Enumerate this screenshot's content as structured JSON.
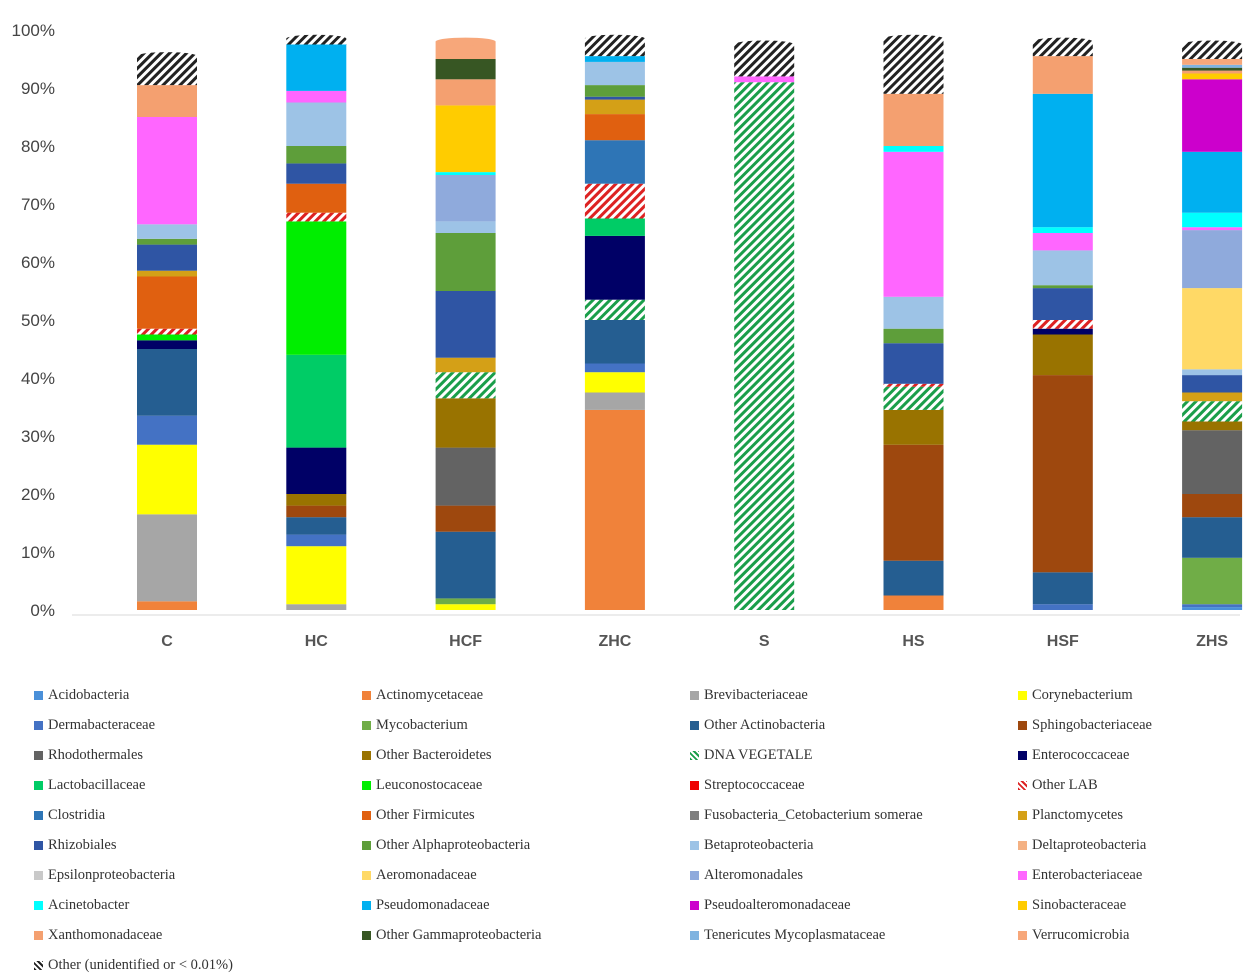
{
  "chart_data": {
    "type": "bar",
    "stacked": true,
    "categories": [
      "C",
      "HC",
      "HCF",
      "ZHC",
      "S",
      "HS",
      "HSF",
      "ZHS"
    ],
    "y_ticks": [
      "0%",
      "10%",
      "20%",
      "30%",
      "40%",
      "50%",
      "60%",
      "70%",
      "80%",
      "90%",
      "100%"
    ],
    "ylim": [
      0,
      100
    ],
    "grid": false,
    "legend_position": "bottom",
    "series": [
      {
        "name": "Acidobacteria",
        "color": "#4a90d9",
        "pattern": "solid",
        "values": [
          0,
          0,
          0,
          0,
          0,
          0,
          0,
          0.5
        ]
      },
      {
        "name": "Actinomycetaceae",
        "color": "#f0823a",
        "pattern": "solid",
        "values": [
          1.5,
          0,
          0,
          34.5,
          0,
          2.5,
          0,
          0
        ]
      },
      {
        "name": "Brevibacteriaceae",
        "color": "#a6a6a6",
        "pattern": "solid",
        "values": [
          15,
          1,
          0,
          3,
          0,
          0,
          0,
          0
        ]
      },
      {
        "name": "Corynebacterium",
        "color": "#ffff00",
        "pattern": "solid",
        "values": [
          12,
          10,
          1,
          3.5,
          0,
          0,
          0,
          0
        ]
      },
      {
        "name": "Dermabacteraceae",
        "color": "#4472c4",
        "pattern": "solid",
        "values": [
          5,
          2,
          0,
          1.5,
          0,
          0,
          1,
          0.5
        ]
      },
      {
        "name": "Mycobacterium",
        "color": "#70ad47",
        "pattern": "solid",
        "values": [
          0,
          0,
          1,
          0,
          0,
          0,
          0,
          8
        ]
      },
      {
        "name": "Other Actinobacteria",
        "color": "#255e91",
        "pattern": "solid",
        "values": [
          11.5,
          3,
          11.5,
          7.5,
          0,
          6,
          5.5,
          7
        ]
      },
      {
        "name": "Sphingobacteriaceae",
        "color": "#9e480e",
        "pattern": "solid",
        "values": [
          0,
          2,
          4.5,
          0,
          0,
          20,
          34,
          4
        ]
      },
      {
        "name": "Rhodothermales",
        "color": "#636363",
        "pattern": "solid",
        "values": [
          0,
          0,
          10,
          0,
          0,
          0,
          0,
          11
        ]
      },
      {
        "name": "Other Bacteroidetes",
        "color": "#997300",
        "pattern": "solid",
        "values": [
          0,
          2,
          8.5,
          0,
          0,
          6,
          7,
          1.5
        ]
      },
      {
        "name": "DNA VEGETALE",
        "color": "#1a9e4a",
        "pattern": "hatch",
        "values": [
          0,
          0,
          4.5,
          3.5,
          91,
          4,
          0,
          3.5
        ]
      },
      {
        "name": "Enterococcaceae",
        "color": "#000066",
        "pattern": "solid",
        "values": [
          1.5,
          8,
          0,
          11,
          0,
          0,
          1,
          0
        ]
      },
      {
        "name": "Lactobacillaceae",
        "color": "#00cc66",
        "pattern": "solid",
        "values": [
          0,
          16,
          0,
          3,
          0,
          0,
          0,
          0
        ]
      },
      {
        "name": "Leuconostocaceae",
        "color": "#00ee00",
        "pattern": "solid",
        "values": [
          1,
          23,
          0,
          0,
          0,
          0,
          0,
          0
        ]
      },
      {
        "name": "Streptococcaceae",
        "color": "#ee0000",
        "pattern": "solid",
        "values": [
          0,
          0,
          0,
          0,
          0,
          0,
          0,
          0
        ]
      },
      {
        "name": "Other LAB",
        "color": "#dd2222",
        "pattern": "hatch",
        "values": [
          1,
          1.5,
          0,
          6,
          0,
          0.5,
          1.5,
          0
        ]
      },
      {
        "name": "Clostridia",
        "color": "#2e75b6",
        "pattern": "solid",
        "values": [
          0,
          0,
          0,
          7.5,
          0,
          0,
          0,
          0
        ]
      },
      {
        "name": "Other Firmicutes",
        "color": "#e06010",
        "pattern": "solid",
        "values": [
          9,
          5,
          0,
          4.5,
          0,
          0,
          0,
          0
        ]
      },
      {
        "name": "Fusobacteria_Cetobacterium somerae",
        "color": "#7f7f7f",
        "pattern": "solid",
        "values": [
          0,
          0,
          0,
          0,
          0,
          0,
          0,
          0
        ]
      },
      {
        "name": "Planctomycetes",
        "color": "#d4a017",
        "pattern": "solid",
        "values": [
          1,
          0,
          2.5,
          2.5,
          0,
          0,
          0,
          1.5
        ]
      },
      {
        "name": "Rhizobiales",
        "color": "#2f55a4",
        "pattern": "solid",
        "values": [
          4.5,
          3.5,
          11.5,
          0.5,
          0,
          7,
          5.5,
          3
        ]
      },
      {
        "name": "Other Alphaproteobacteria",
        "color": "#5e9e3a",
        "pattern": "solid",
        "values": [
          1,
          3,
          10,
          2,
          0,
          2.5,
          0.5,
          0
        ]
      },
      {
        "name": "Betaproteobacteria",
        "color": "#9dc3e6",
        "pattern": "solid",
        "values": [
          2.5,
          7.5,
          2,
          4,
          0,
          5.5,
          6,
          1
        ]
      },
      {
        "name": "Deltaproteobacteria",
        "color": "#f4b183",
        "pattern": "solid",
        "values": [
          0,
          0,
          0,
          0,
          0,
          0,
          0,
          0
        ]
      },
      {
        "name": "Epsilonproteobacteria",
        "color": "#c9c9c9",
        "pattern": "solid",
        "values": [
          0,
          0,
          0,
          0,
          0,
          0,
          0,
          0
        ]
      },
      {
        "name": "Aeromonadaceae",
        "color": "#ffd966",
        "pattern": "solid",
        "values": [
          0,
          0,
          0,
          0,
          0,
          0,
          0,
          14
        ]
      },
      {
        "name": "Alteromonadales",
        "color": "#8faadc",
        "pattern": "solid",
        "values": [
          0,
          0,
          8,
          0,
          0,
          0,
          0,
          10
        ]
      },
      {
        "name": "Enterobacteriaceae",
        "color": "#ff66ff",
        "pattern": "solid",
        "values": [
          18.5,
          2,
          0,
          0,
          1,
          25,
          3,
          0.5
        ]
      },
      {
        "name": "Acinetobacter",
        "color": "#00ffff",
        "pattern": "solid",
        "values": [
          0,
          0,
          0.5,
          0,
          0,
          1,
          1,
          2.5
        ]
      },
      {
        "name": "Pseudomonadaceae",
        "color": "#00b0f0",
        "pattern": "solid",
        "values": [
          0,
          8,
          0,
          1,
          0,
          0,
          23,
          10.5
        ]
      },
      {
        "name": "Pseudoalteromonadaceae",
        "color": "#cc00cc",
        "pattern": "solid",
        "values": [
          0,
          0,
          0,
          0,
          0,
          0,
          0,
          12.5
        ]
      },
      {
        "name": "Sinobacteraceae",
        "color": "#ffcc00",
        "pattern": "solid",
        "values": [
          0,
          0,
          11.5,
          0,
          0,
          0,
          0,
          1
        ]
      },
      {
        "name": "Xanthomonadaceae",
        "color": "#f4a070",
        "pattern": "solid",
        "values": [
          5.5,
          0,
          4.5,
          0,
          0,
          9,
          6.5,
          0.5
        ]
      },
      {
        "name": "Other Gammaproteobacteria",
        "color": "#375623",
        "pattern": "solid",
        "values": [
          0,
          0,
          3.5,
          0,
          0,
          0,
          0,
          0.5
        ]
      },
      {
        "name": "Tenericutes Mycoplasmataceae",
        "color": "#7fb3e0",
        "pattern": "solid",
        "values": [
          0,
          0,
          0,
          0,
          0,
          0,
          0,
          0.5
        ]
      },
      {
        "name": "Verrucomicrobia",
        "color": "#f7a77a",
        "pattern": "solid",
        "values": [
          0,
          0,
          3,
          0,
          0,
          0,
          0,
          1
        ]
      },
      {
        "name": "Other (unidentified or < 0.01%)",
        "color": "#222222",
        "pattern": "hatch",
        "values": [
          5,
          1,
          0,
          3,
          5.5,
          9.5,
          2.5,
          2.5
        ]
      }
    ]
  }
}
